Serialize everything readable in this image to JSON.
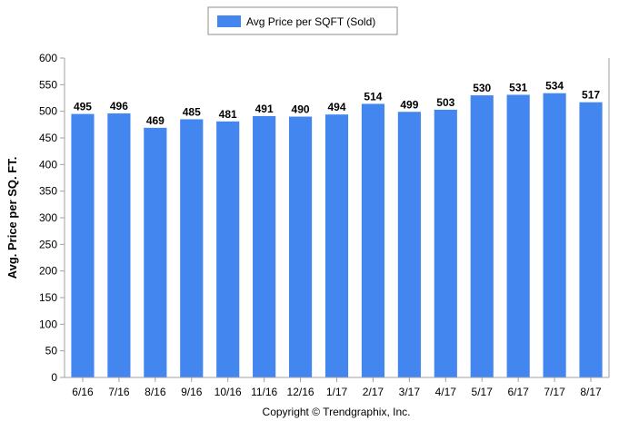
{
  "chart_data": {
    "type": "bar",
    "categories": [
      "6/16",
      "7/16",
      "8/16",
      "9/16",
      "10/16",
      "11/16",
      "12/16",
      "1/17",
      "2/17",
      "3/17",
      "4/17",
      "5/17",
      "6/17",
      "7/17",
      "8/17"
    ],
    "series": [
      {
        "name": "Avg Price per SQFT (Sold)",
        "values": [
          495,
          496,
          469,
          485,
          481,
          491,
          490,
          494,
          514,
          499,
          503,
          530,
          531,
          534,
          517
        ],
        "color": "#4386f0"
      }
    ],
    "title": "",
    "xlabel": "",
    "ylabel": "Avg. Price per SQ. FT.",
    "ylim": [
      0,
      600
    ],
    "yticks": [
      0,
      50,
      100,
      150,
      200,
      250,
      300,
      350,
      400,
      450,
      500,
      550,
      600
    ],
    "grid": false,
    "legend": "top-center",
    "data_labels": true
  },
  "footer": {
    "copyright": "Copyright © Trendgraphix, Inc."
  }
}
